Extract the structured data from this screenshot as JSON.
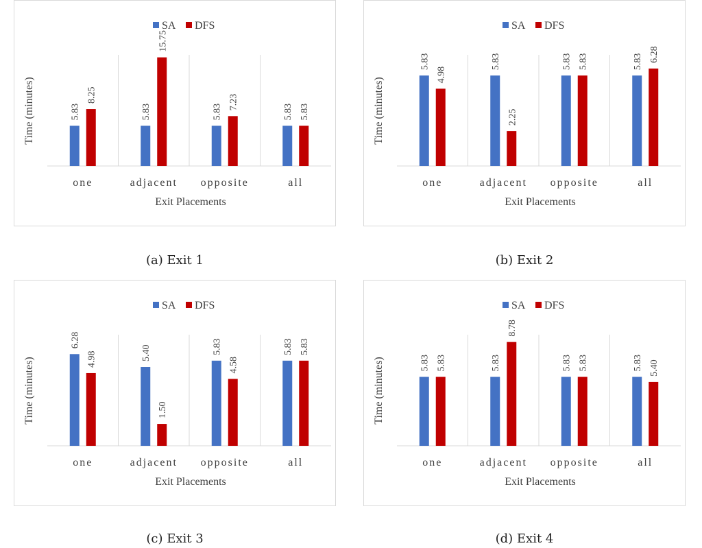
{
  "colors": {
    "SA": "#4472C4",
    "DFS": "#C00000",
    "axis": "#d9d9d9",
    "text": "#404040"
  },
  "chart_data": [
    {
      "type": "bar",
      "caption": "(a) Exit 1",
      "categories": [
        "one",
        "adjacent",
        "opposite",
        "all"
      ],
      "xlabel": "Exit Placements",
      "ylabel": "Time (minutes)",
      "ylim": [
        0,
        18
      ],
      "grid": false,
      "legend": "top-center",
      "series": [
        {
          "name": "SA",
          "values": [
            5.83,
            5.83,
            5.83,
            5.83
          ],
          "labels": [
            "5.83",
            "5.83",
            "5.83",
            "5.83"
          ]
        },
        {
          "name": "DFS",
          "values": [
            8.25,
            15.75,
            7.23,
            5.83
          ],
          "labels": [
            "8.25",
            "15.75",
            "7.23",
            "5.83"
          ]
        }
      ]
    },
    {
      "type": "bar",
      "caption": "(b) Exit 2",
      "categories": [
        "one",
        "adjacent",
        "opposite",
        "all"
      ],
      "xlabel": "Exit Placements",
      "ylabel": "Time (minutes)",
      "ylim": [
        0,
        8
      ],
      "grid": false,
      "legend": "top-center",
      "series": [
        {
          "name": "SA",
          "values": [
            5.83,
            5.83,
            5.83,
            5.83
          ],
          "labels": [
            "5.83",
            "5.83",
            "5.83",
            "5.83"
          ]
        },
        {
          "name": "DFS",
          "values": [
            4.98,
            2.25,
            5.83,
            6.28
          ],
          "labels": [
            "4.98",
            "2.25",
            "5.83",
            "6.28"
          ]
        }
      ]
    },
    {
      "type": "bar",
      "caption": "(c) Exit 3",
      "categories": [
        "one",
        "adjacent",
        "opposite",
        "all"
      ],
      "xlabel": "Exit Placements",
      "ylabel": "Time (minutes)",
      "ylim": [
        0,
        8.5
      ],
      "grid": false,
      "legend": "top-center",
      "series": [
        {
          "name": "SA",
          "values": [
            6.28,
            5.4,
            5.83,
            5.83
          ],
          "labels": [
            "6.28",
            "5.40",
            "5.83",
            "5.83"
          ]
        },
        {
          "name": "DFS",
          "values": [
            4.98,
            1.5,
            4.58,
            5.83
          ],
          "labels": [
            "4.98",
            "1.50",
            "4.58",
            "5.83"
          ]
        }
      ]
    },
    {
      "type": "bar",
      "caption": "(d) Exit 4",
      "categories": [
        "one",
        "adjacent",
        "opposite",
        "all"
      ],
      "xlabel": "Exit Placements",
      "ylabel": "Time (minutes)",
      "ylim": [
        0,
        10.5
      ],
      "grid": false,
      "legend": "top-center",
      "series": [
        {
          "name": "SA",
          "values": [
            5.83,
            5.83,
            5.83,
            5.83
          ],
          "labels": [
            "5.83",
            "5.83",
            "5.83",
            "5.83"
          ]
        },
        {
          "name": "DFS",
          "values": [
            5.83,
            8.78,
            5.83,
            5.4
          ],
          "labels": [
            "5.83",
            "8.78",
            "5.83",
            "5.40"
          ]
        }
      ]
    }
  ]
}
